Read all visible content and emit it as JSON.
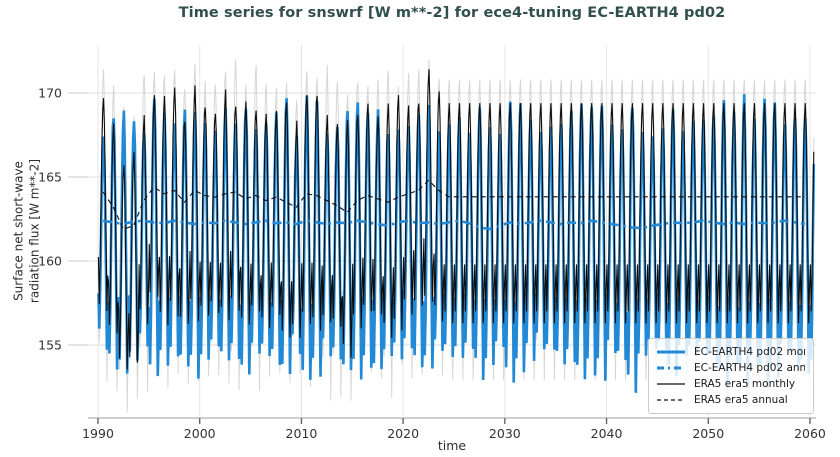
{
  "title": "Time series for snswrf [W m**-2] for ece4-tuning EC-EARTH4 pd02",
  "colors": {
    "title": "#31504d",
    "blue_accent": "#2289d6",
    "black_series": "#0d0d0d",
    "gray_shadow_series": "#d6d6d6",
    "grid_horizontal": "#dcdcdc",
    "grid_vertical": "#e6e6e6",
    "axis_line": "#c8c8c8",
    "tick_mark": "#666666",
    "tick_label": "#333333",
    "legend_border": "#cccccc"
  },
  "axes": {
    "xlabel": "time",
    "ylabel_line1": "Surface net short-wave",
    "ylabel_line2": "radiation flux [W m**-2]"
  },
  "legend": {
    "position": "lower right",
    "items": [
      {
        "label": "EC-EARTH4 pd02 monthly",
        "color": "#2289d6",
        "style": "solid",
        "width": 3
      },
      {
        "label": "EC-EARTH4 pd02 annual",
        "color": "#2289d6",
        "style": "dashdot",
        "width": 3
      },
      {
        "label": "ERA5 era5 monthly",
        "color": "#0d0d0d",
        "style": "solid",
        "width": 1.3
      },
      {
        "label": "ERA5 era5 annual",
        "color": "#0d0d0d",
        "style": "dashed",
        "width": 1.3
      }
    ]
  },
  "chart_data": {
    "type": "line",
    "title": "Time series for snswrf [W m**-2] for ece4-tuning EC-EARTH4 pd02",
    "xlabel": "time",
    "ylabel": "Surface net short-wave radiation flux [W m**-2]",
    "x_ticks": [
      1990,
      2000,
      2010,
      2020,
      2030,
      2040,
      2050,
      2060
    ],
    "y_ticks": [
      155,
      160,
      165,
      170
    ],
    "xlim": [
      1989.0,
      2060.6
    ],
    "ylim": [
      150.7,
      172.9
    ],
    "grid": true,
    "legend_position": "lower right",
    "x_start": 1990,
    "x_end": 2060,
    "points_per_year": 12,
    "seed": 7,
    "draw_order": [
      4,
      0,
      2,
      1,
      3
    ],
    "series": [
      {
        "name": "EC-EARTH4 pd02 monthly",
        "kind": "monthly",
        "color": "#2289d6",
        "style": "solid",
        "width": 2.6,
        "in_legend": true,
        "climatology": [
          157.8,
          154.6,
          157.2,
          161.2,
          165.2,
          167.6,
          168.6,
          166.8,
          163.0,
          158.6,
          153.8,
          156.4
        ],
        "seasonal_max_range": [
          166.5,
          169.8
        ],
        "seasonal_min_range": [
          152.0,
          155.0
        ],
        "interannual_amp": 0.15,
        "monthly_noise": 0.35,
        "variable_until": 2060,
        "annual_coupling": 1.0,
        "annual_ref": 162.28,
        "couple_to": "EC-EARTH4 pd02 annual"
      },
      {
        "name": "EC-EARTH4 pd02 annual",
        "kind": "annual",
        "color": "#2289d6",
        "style": "dashdot",
        "width": 2.6,
        "in_legend": true,
        "start_year": 1990,
        "values": [
          162.4,
          162.3,
          162.2,
          162.35,
          162.4,
          162.3,
          162.25,
          162.4,
          162.3,
          162.2,
          162.3,
          162.25,
          162.4,
          162.3,
          162.2,
          162.3,
          162.4,
          162.25,
          162.3,
          162.2,
          162.4,
          162.3,
          162.2,
          162.3,
          162.25,
          162.4,
          162.3,
          162.2,
          162.1,
          162.3,
          162.4,
          162.25,
          162.3,
          162.2,
          162.3,
          162.4,
          162.25,
          162.0,
          161.9,
          162.1,
          162.3,
          162.2,
          162.3,
          162.4,
          162.3,
          162.2,
          162.3,
          162.25,
          162.4,
          162.3,
          162.2,
          162.1,
          162.0,
          161.95,
          162.1,
          162.2,
          162.3,
          162.25,
          162.3,
          162.4,
          162.3,
          162.2,
          162.3,
          162.2,
          162.3,
          162.25,
          162.3,
          162.4,
          162.3,
          162.2,
          162.3
        ]
      },
      {
        "name": "ERA5 era5 monthly",
        "kind": "monthly",
        "color": "#0d0d0d",
        "style": "solid",
        "width": 1.1,
        "in_legend": true,
        "climatology": [
          159.8,
          157.0,
          159.2,
          162.8,
          166.5,
          168.6,
          169.4,
          167.8,
          164.2,
          160.2,
          156.3,
          158.4
        ],
        "seasonal_max_range": [
          166.5,
          170.5
        ],
        "seasonal_min_range": [
          152.3,
          156.5
        ],
        "interannual_amp": 0.1,
        "monthly_noise": 0.3,
        "variable_until": 2023,
        "annual_coupling": 1.6,
        "annual_ref": 163.82,
        "couple_to": "ERA5 era5 annual"
      },
      {
        "name": "ERA5 era5 annual",
        "kind": "annual",
        "color": "#0d0d0d",
        "style": "dashed",
        "width": 1.1,
        "in_legend": true,
        "start_year": 1990,
        "values": [
          164.1,
          163.2,
          161.9,
          162.1,
          163.6,
          164.4,
          164.0,
          164.2,
          163.5,
          164.2,
          163.9,
          163.8,
          164.0,
          164.1,
          163.7,
          163.9,
          163.6,
          163.8,
          163.5,
          163.2,
          164.0,
          163.9,
          163.6,
          163.3,
          162.9,
          163.6,
          163.9,
          163.7,
          163.5,
          163.8,
          164.0,
          164.2,
          164.8,
          164.2,
          163.82,
          163.82,
          163.82,
          163.82,
          163.82,
          163.82,
          163.82,
          163.82,
          163.82,
          163.82,
          163.82,
          163.82,
          163.82,
          163.82,
          163.82,
          163.82,
          163.82,
          163.82,
          163.82,
          163.82,
          163.82,
          163.82,
          163.82,
          163.82,
          163.82,
          163.82,
          163.82,
          163.82,
          163.82,
          163.82,
          163.82,
          163.82,
          163.82,
          163.82,
          163.82,
          163.82,
          163.82
        ]
      },
      {
        "name": "unlabeled gray background monthly",
        "kind": "monthly",
        "color": "#d6d6d6",
        "style": "solid",
        "width": 1.0,
        "in_legend": false,
        "climatology": [
          159.0,
          155.3,
          158.0,
          162.6,
          167.3,
          170.0,
          170.8,
          168.9,
          164.3,
          159.4,
          152.9,
          156.8
        ],
        "seasonal_max_range": [
          169.5,
          172.0
        ],
        "seasonal_min_range": [
          150.8,
          153.5
        ],
        "interannual_amp": 0.1,
        "monthly_noise": 0.3,
        "variable_until": 2023,
        "annual_coupling": 0.9,
        "annual_ref": 163.82,
        "couple_to": "ERA5 era5 annual"
      }
    ]
  }
}
